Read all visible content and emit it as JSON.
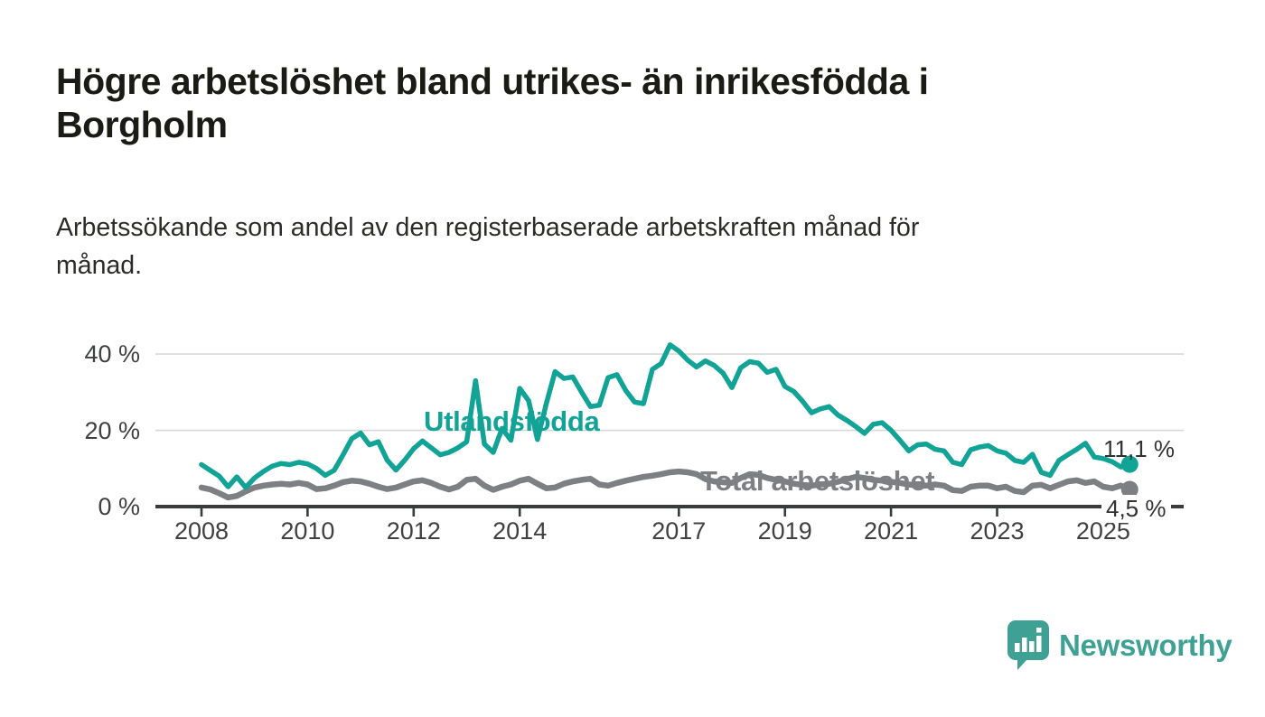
{
  "colors": {
    "accent_teal": "#10A396",
    "line_gray": "#7d7f82",
    "grid": "#d8d8d8",
    "axis": "#3a3b3c",
    "text_dark": "#1b1b16",
    "logo_teal": "#3fa193"
  },
  "chart_data": {
    "type": "line",
    "title_lines": [
      "Högre arbetslöshet bland utrikes- än inrikesfödda i",
      "Borgholm"
    ],
    "subtitle_lines": [
      "Arbetssökande som andel av den registerbaserade arbetskraften månad för",
      "månad."
    ],
    "grid": "horizontal",
    "legend_position": "inline-labels",
    "xlim": [
      2008,
      2026.5
    ],
    "ylim": [
      0,
      45
    ],
    "x_start": 2008,
    "x_step_years": 0.1666667,
    "x_tick_labels": [
      "2008",
      "2010",
      "2012",
      "2014",
      "2017",
      "2019",
      "2021",
      "2023",
      "2025"
    ],
    "x_tick_years": [
      2008,
      2010,
      2012,
      2014,
      2017,
      2019,
      2021,
      2023,
      2025
    ],
    "y_ticks": [
      {
        "value": 0,
        "label": "0 %"
      },
      {
        "value": 20,
        "label": "20 %"
      },
      {
        "value": 40,
        "label": "40 %"
      }
    ],
    "series": [
      {
        "name": "Utlandsfödda",
        "color": "#10A396",
        "end_label": "11,1 %",
        "end_value": 11.1,
        "values": [
          11.0,
          9.5,
          8.0,
          5.2,
          7.8,
          5.0,
          7.5,
          9.2,
          10.6,
          11.3,
          11.0,
          11.6,
          11.2,
          10.0,
          8.2,
          9.5,
          13.5,
          17.8,
          19.3,
          16.2,
          17.0,
          12.2,
          9.6,
          12.2,
          15.2,
          17.2,
          15.4,
          13.6,
          14.2,
          15.4,
          17.0,
          33.0,
          16.4,
          14.2,
          20.5,
          17.4,
          31.0,
          27.8,
          17.6,
          27.0,
          35.4,
          33.6,
          34.0,
          30.0,
          26.2,
          26.6,
          33.8,
          34.6,
          30.4,
          27.4,
          27.0,
          36.0,
          37.5,
          42.4,
          40.8,
          38.4,
          36.6,
          38.2,
          37.0,
          35.0,
          31.2,
          36.4,
          38.0,
          37.6,
          35.2,
          36.0,
          31.5,
          30.2,
          27.6,
          24.6,
          25.6,
          26.2,
          24.0,
          22.6,
          21.0,
          19.2,
          21.6,
          22.0,
          20.0,
          17.4,
          14.6,
          16.2,
          16.4,
          15.0,
          14.6,
          11.6,
          11.0,
          14.9,
          15.6,
          16.0,
          14.6,
          14.0,
          12.1,
          11.6,
          13.7,
          9.0,
          8.2,
          12.1,
          13.6,
          15.0,
          16.6,
          13.0,
          12.6,
          11.8,
          10.4,
          11.1
        ]
      },
      {
        "name": "Total arbetslöshet",
        "color": "#7d7f82",
        "end_label": "4,5 %",
        "end_value": 4.5,
        "values": [
          5.0,
          4.5,
          3.5,
          2.4,
          2.8,
          4.0,
          5.0,
          5.5,
          5.8,
          6.0,
          5.8,
          6.2,
          5.8,
          4.6,
          4.8,
          5.5,
          6.4,
          6.8,
          6.6,
          6.0,
          5.2,
          4.6,
          5.0,
          5.8,
          6.6,
          6.9,
          6.2,
          5.2,
          4.5,
          5.2,
          7.0,
          7.3,
          5.5,
          4.4,
          5.2,
          5.8,
          6.8,
          7.3,
          6.0,
          4.8,
          5.0,
          6.0,
          6.6,
          7.0,
          7.3,
          5.8,
          5.5,
          6.2,
          6.8,
          7.3,
          7.8,
          8.1,
          8.5,
          9.0,
          9.2,
          9.0,
          8.5,
          7.2,
          6.6,
          6.4,
          6.2,
          7.5,
          8.5,
          8.3,
          7.5,
          7.0,
          6.6,
          6.0,
          5.7,
          5.5,
          5.8,
          6.0,
          6.5,
          7.2,
          7.8,
          7.5,
          7.0,
          6.8,
          6.5,
          6.2,
          5.8,
          5.5,
          5.5,
          5.8,
          5.5,
          4.3,
          4.1,
          5.2,
          5.5,
          5.5,
          4.8,
          5.2,
          4.1,
          3.8,
          5.5,
          5.7,
          4.8,
          5.7,
          6.6,
          6.9,
          6.2,
          6.6,
          5.2,
          4.8,
          5.5,
          4.5
        ]
      }
    ]
  },
  "footer": {
    "brand": "Newsworthy"
  }
}
